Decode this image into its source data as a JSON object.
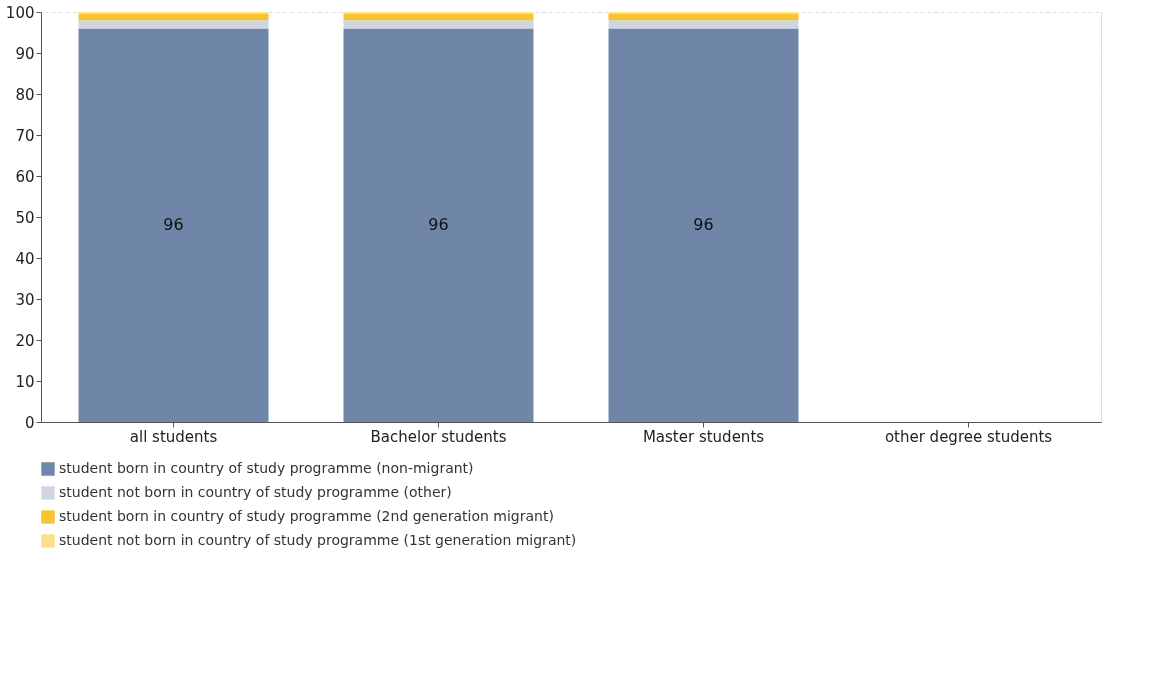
{
  "chart_data": {
    "type": "bar",
    "stacked": true,
    "categories": [
      "all students",
      "Bachelor students",
      "Master students",
      "other degree students"
    ],
    "series": [
      {
        "name": "student born in country of study programme (non-migrant)",
        "color": "#6f86a8",
        "values": [
          96,
          96,
          96,
          null
        ],
        "value_labels": [
          "96",
          "96",
          "96",
          null
        ]
      },
      {
        "name": "student not born in country of study programme (other)",
        "color": "#d0d6e0",
        "values": [
          2,
          2,
          2,
          null
        ]
      },
      {
        "name": "student born in country of study programme (2nd generation migrant)",
        "color": "#f5c430",
        "values": [
          1.5,
          1.5,
          1.5,
          null
        ]
      },
      {
        "name": "student not born in country of study programme (1st generation migrant)",
        "color": "#fce08c",
        "values": [
          0.5,
          0.5,
          0.5,
          null
        ]
      }
    ],
    "ylim": [
      0,
      100
    ],
    "yticks": [
      0,
      10,
      20,
      30,
      40,
      50,
      60,
      70,
      80,
      90,
      100
    ],
    "grid": "y",
    "legend": "bottom"
  }
}
